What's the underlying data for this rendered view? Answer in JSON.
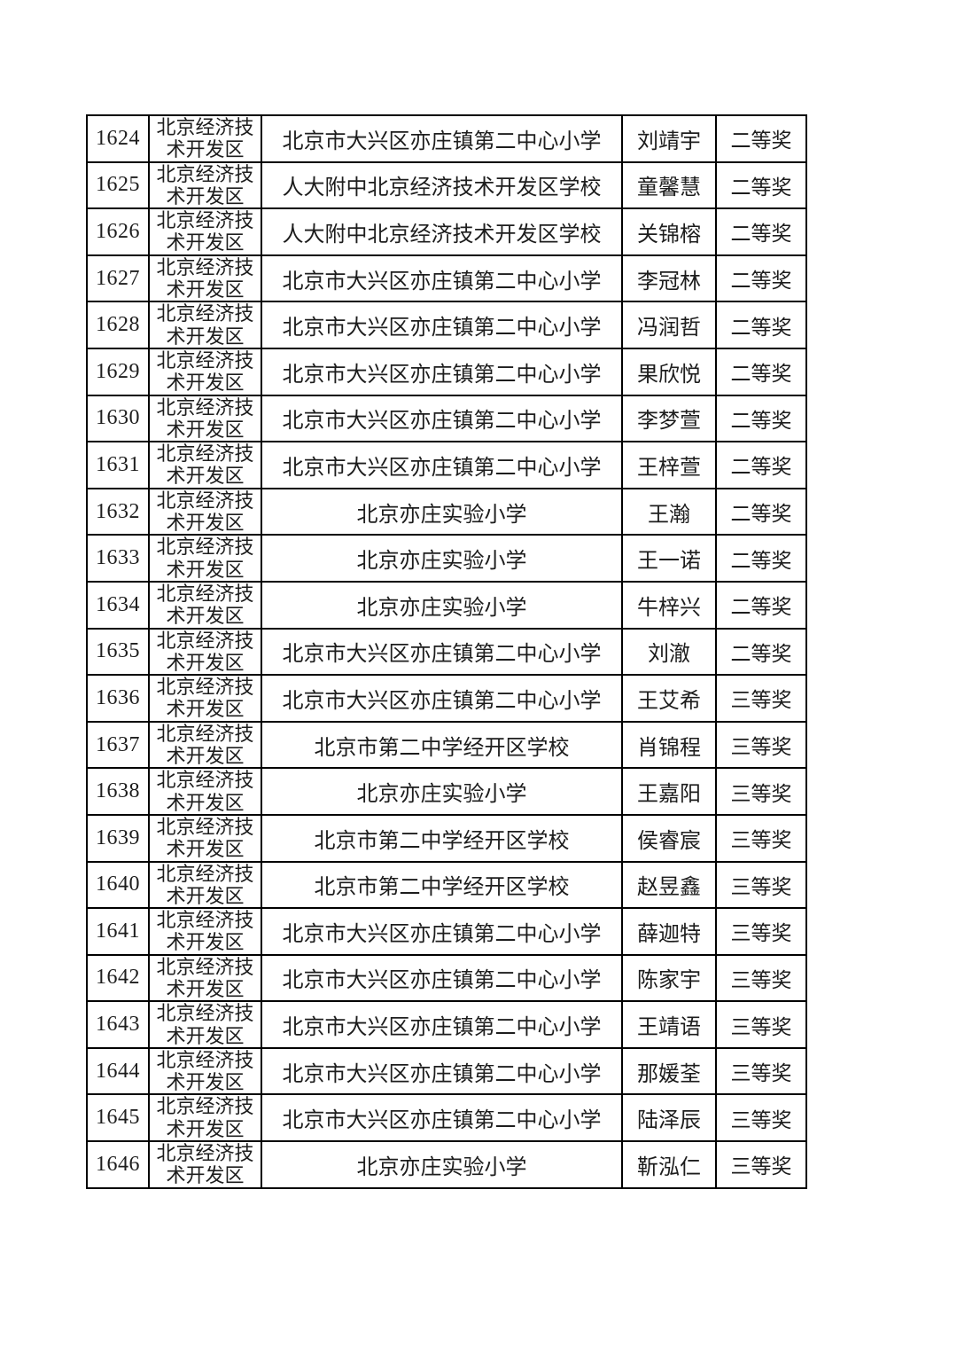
{
  "page": {
    "background_color": "#ffffff",
    "text_color": "#1d1d1d",
    "border_color": "#000000"
  },
  "table": {
    "rows": [
      {
        "no": "1624",
        "district": "北京经济技术开发区",
        "school": "北京市大兴区亦庄镇第二中心小学",
        "name": "刘靖宇",
        "award": "二等奖"
      },
      {
        "no": "1625",
        "district": "北京经济技术开发区",
        "school": "人大附中北京经济技术开发区学校",
        "name": "童馨慧",
        "award": "二等奖"
      },
      {
        "no": "1626",
        "district": "北京经济技术开发区",
        "school": "人大附中北京经济技术开发区学校",
        "name": "关锦榕",
        "award": "二等奖"
      },
      {
        "no": "1627",
        "district": "北京经济技术开发区",
        "school": "北京市大兴区亦庄镇第二中心小学",
        "name": "李冠林",
        "award": "二等奖"
      },
      {
        "no": "1628",
        "district": "北京经济技术开发区",
        "school": "北京市大兴区亦庄镇第二中心小学",
        "name": "冯润哲",
        "award": "二等奖"
      },
      {
        "no": "1629",
        "district": "北京经济技术开发区",
        "school": "北京市大兴区亦庄镇第二中心小学",
        "name": "果欣悦",
        "award": "二等奖"
      },
      {
        "no": "1630",
        "district": "北京经济技术开发区",
        "school": "北京市大兴区亦庄镇第二中心小学",
        "name": "李梦萱",
        "award": "二等奖"
      },
      {
        "no": "1631",
        "district": "北京经济技术开发区",
        "school": "北京市大兴区亦庄镇第二中心小学",
        "name": "王梓萱",
        "award": "二等奖"
      },
      {
        "no": "1632",
        "district": "北京经济技术开发区",
        "school": "北京亦庄实验小学",
        "name": "王瀚",
        "award": "二等奖"
      },
      {
        "no": "1633",
        "district": "北京经济技术开发区",
        "school": "北京亦庄实验小学",
        "name": "王一诺",
        "award": "二等奖"
      },
      {
        "no": "1634",
        "district": "北京经济技术开发区",
        "school": "北京亦庄实验小学",
        "name": "牛梓兴",
        "award": "二等奖"
      },
      {
        "no": "1635",
        "district": "北京经济技术开发区",
        "school": "北京市大兴区亦庄镇第二中心小学",
        "name": "刘澈",
        "award": "二等奖"
      },
      {
        "no": "1636",
        "district": "北京经济技术开发区",
        "school": "北京市大兴区亦庄镇第二中心小学",
        "name": "王艾希",
        "award": "三等奖"
      },
      {
        "no": "1637",
        "district": "北京经济技术开发区",
        "school": "北京市第二中学经开区学校",
        "name": "肖锦程",
        "award": "三等奖"
      },
      {
        "no": "1638",
        "district": "北京经济技术开发区",
        "school": "北京亦庄实验小学",
        "name": "王嘉阳",
        "award": "三等奖"
      },
      {
        "no": "1639",
        "district": "北京经济技术开发区",
        "school": "北京市第二中学经开区学校",
        "name": "侯睿宸",
        "award": "三等奖"
      },
      {
        "no": "1640",
        "district": "北京经济技术开发区",
        "school": "北京市第二中学经开区学校",
        "name": "赵昱鑫",
        "award": "三等奖"
      },
      {
        "no": "1641",
        "district": "北京经济技术开发区",
        "school": "北京市大兴区亦庄镇第二中心小学",
        "name": "薛迦特",
        "award": "三等奖"
      },
      {
        "no": "1642",
        "district": "北京经济技术开发区",
        "school": "北京市大兴区亦庄镇第二中心小学",
        "name": "陈家宇",
        "award": "三等奖"
      },
      {
        "no": "1643",
        "district": "北京经济技术开发区",
        "school": "北京市大兴区亦庄镇第二中心小学",
        "name": "王靖语",
        "award": "三等奖"
      },
      {
        "no": "1644",
        "district": "北京经济技术开发区",
        "school": "北京市大兴区亦庄镇第二中心小学",
        "name": "那媛荃",
        "award": "三等奖"
      },
      {
        "no": "1645",
        "district": "北京经济技术开发区",
        "school": "北京市大兴区亦庄镇第二中心小学",
        "name": "陆泽辰",
        "award": "三等奖"
      },
      {
        "no": "1646",
        "district": "北京经济技术开发区",
        "school": "北京亦庄实验小学",
        "name": "靳泓仁",
        "award": "三等奖"
      }
    ]
  }
}
